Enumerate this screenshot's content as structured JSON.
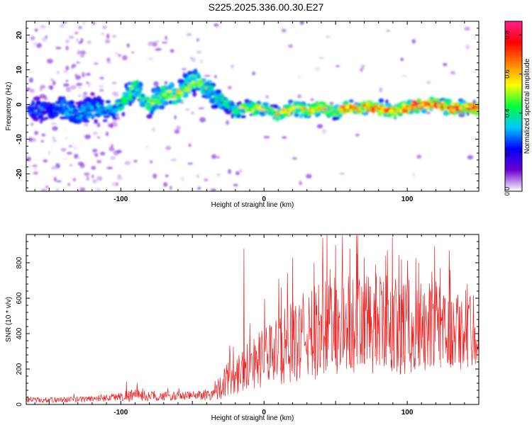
{
  "title": "S225.2025.336.00.30.E27",
  "chart_data": [
    {
      "type": "heatmap",
      "title": "S225.2025.336.00.30.E27",
      "xlabel": "Height of straight line (km)",
      "ylabel": "Frequency (Hz)",
      "xlim": [
        -166,
        150
      ],
      "ylim": [
        -25,
        24
      ],
      "xticks": [
        -100,
        0,
        100
      ],
      "yticks": [
        -20,
        -10,
        0,
        10,
        20
      ],
      "colorbar": {
        "label": "Normalized spectral amplitude",
        "range": [
          0,
          0.87
        ],
        "ticks": [
          0,
          0.2,
          0.4,
          0.6,
          0.8
        ],
        "tick_labels": [
          "0.0",
          "0.2",
          "0.4",
          "0.6",
          "0.8"
        ],
        "colors": [
          "#ffffff",
          "#6a00d0",
          "#0000ff",
          "#00c8ff",
          "#00ff40",
          "#ffff00",
          "#ff8000",
          "#ff0000",
          "#ff2090"
        ]
      },
      "ridge": {
        "x": [
          -166,
          -150,
          -140,
          -130,
          -120,
          -110,
          -100,
          -90,
          -80,
          -70,
          -60,
          -50,
          -40,
          -30,
          -20,
          -10,
          0,
          10,
          20,
          30,
          40,
          50,
          60,
          70,
          80,
          90,
          100,
          110,
          120,
          130,
          140,
          150
        ],
        "y": [
          -1,
          -2,
          -1,
          -3,
          -1,
          -2,
          0,
          5,
          0,
          3,
          3,
          7,
          5,
          1,
          -2,
          -1,
          -1,
          -3,
          -1,
          -2,
          -1,
          -2,
          -1,
          -1,
          -1,
          -2,
          -1,
          0,
          0,
          -1,
          -1,
          -1
        ],
        "peak_amplitude": [
          0.25,
          0.25,
          0.3,
          0.3,
          0.35,
          0.35,
          0.4,
          0.45,
          0.45,
          0.5,
          0.55,
          0.5,
          0.45,
          0.4,
          0.5,
          0.55,
          0.55,
          0.6,
          0.6,
          0.6,
          0.65,
          0.65,
          0.7,
          0.7,
          0.75,
          0.7,
          0.75,
          0.85,
          0.8,
          0.75,
          0.8,
          0.8
        ]
      }
    },
    {
      "type": "line",
      "xlabel": "Height of straight line (km)",
      "ylabel": "SNR (10 * v/v)",
      "xlim": [
        -166,
        150
      ],
      "ylim": [
        0,
        960
      ],
      "xticks": [
        -100,
        0,
        100
      ],
      "yticks": [
        0,
        200,
        400,
        600,
        800
      ],
      "color": "#ee2222",
      "envelope": {
        "x": [
          -166,
          -150,
          -125,
          -100,
          -95,
          -75,
          -50,
          -35,
          -30,
          -20,
          -15,
          -10,
          0,
          10,
          20,
          30,
          40,
          50,
          60,
          70,
          80,
          90,
          100,
          110,
          120,
          130,
          140,
          150
        ],
        "mean": [
          25,
          25,
          30,
          45,
          55,
          45,
          50,
          60,
          110,
          175,
          200,
          230,
          265,
          310,
          350,
          390,
          420,
          440,
          450,
          455,
          450,
          445,
          440,
          430,
          420,
          415,
          420,
          430
        ],
        "spread": [
          15,
          15,
          18,
          25,
          40,
          25,
          25,
          40,
          80,
          120,
          130,
          150,
          170,
          200,
          230,
          260,
          280,
          300,
          300,
          300,
          290,
          280,
          270,
          260,
          250,
          240,
          230,
          220
        ]
      },
      "spikes": [
        {
          "x": -96,
          "y": 130
        },
        {
          "x": -14,
          "y": 880
        },
        {
          "x": 12,
          "y": 660
        },
        {
          "x": 20,
          "y": 830
        },
        {
          "x": 35,
          "y": 800
        },
        {
          "x": 44,
          "y": 960
        },
        {
          "x": 50,
          "y": 900
        },
        {
          "x": 60,
          "y": 880
        },
        {
          "x": 65,
          "y": 850
        },
        {
          "x": 70,
          "y": 830
        },
        {
          "x": 78,
          "y": 790
        },
        {
          "x": 85,
          "y": 840
        },
        {
          "x": 96,
          "y": 820
        },
        {
          "x": 108,
          "y": 800
        },
        {
          "x": 123,
          "y": 770
        },
        {
          "x": 130,
          "y": 760
        },
        {
          "x": 142,
          "y": 680
        }
      ]
    }
  ]
}
